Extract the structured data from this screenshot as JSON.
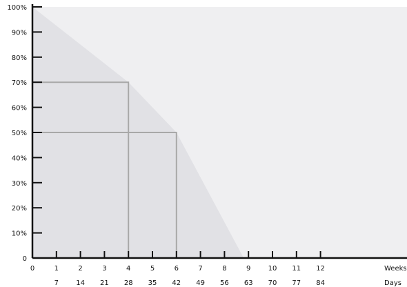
{
  "chart_data": {
    "type": "area",
    "x": [
      0,
      4,
      6,
      8.8
    ],
    "values": [
      100,
      70,
      50,
      0
    ],
    "xlim": [
      0,
      15
    ],
    "ylim": [
      0,
      100
    ],
    "y_ticks": [
      "0",
      "10%",
      "20%",
      "30%",
      "40%",
      "50%",
      "60%",
      "70%",
      "80%",
      "90%",
      "100%"
    ],
    "week_ticks": [
      "1",
      "2",
      "3",
      "4",
      "5",
      "6",
      "7",
      "8",
      "9",
      "10",
      "11",
      "12"
    ],
    "day_ticks": [
      "7",
      "14",
      "21",
      "28",
      "35",
      "42",
      "49",
      "56",
      "63",
      "70",
      "77",
      "84"
    ],
    "x_origin_label": "0",
    "xlabel_weeks": "Weeks",
    "xlabel_days": "Days",
    "reference_lines": [
      {
        "x": 4,
        "y": 70
      },
      {
        "x": 6,
        "y": 50
      }
    ],
    "grid": false,
    "colors": {
      "plot_background": "#efeff1",
      "area_fill": "#e1e1e5",
      "reference_line": "#a8a8a8",
      "axis": "#111111"
    }
  }
}
